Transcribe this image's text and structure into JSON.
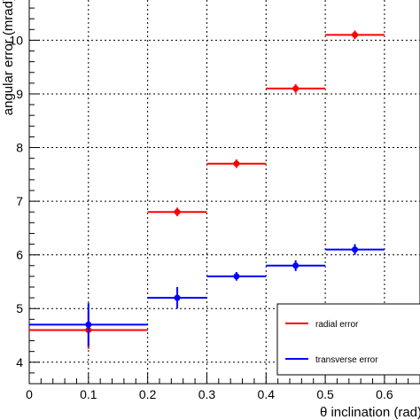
{
  "chart_data": {
    "type": "scatter",
    "xlabel": "θ inclination (rad)",
    "ylabel": "angular error (mrad)",
    "xlim": [
      0,
      0.66
    ],
    "ylim": [
      3.6,
      10.75
    ],
    "x_ticks": [
      "0",
      "0.1",
      "0.2",
      "0.3",
      "0.4",
      "0.5",
      "0.6"
    ],
    "y_ticks": [
      "4",
      "5",
      "6",
      "7",
      "8",
      "9",
      "10"
    ],
    "grid": true,
    "legend_position": "bottom-right",
    "series": [
      {
        "name": "radial error",
        "color": "#ff0000",
        "points": [
          {
            "x": 0.1,
            "y": 4.6,
            "x_err": 0.1,
            "y_err": 0.35
          },
          {
            "x": 0.25,
            "y": 6.8,
            "x_err": 0.05,
            "y_err": 0.08
          },
          {
            "x": 0.35,
            "y": 7.7,
            "x_err": 0.05,
            "y_err": 0.08
          },
          {
            "x": 0.45,
            "y": 9.1,
            "x_err": 0.05,
            "y_err": 0.08
          },
          {
            "x": 0.55,
            "y": 10.1,
            "x_err": 0.05,
            "y_err": 0.08
          }
        ]
      },
      {
        "name": "transverse error",
        "color": "#0000ff",
        "points": [
          {
            "x": 0.1,
            "y": 4.7,
            "x_err": 0.1,
            "y_err": 0.4
          },
          {
            "x": 0.25,
            "y": 5.2,
            "x_err": 0.05,
            "y_err": 0.2
          },
          {
            "x": 0.35,
            "y": 5.6,
            "x_err": 0.05,
            "y_err": 0.08
          },
          {
            "x": 0.45,
            "y": 5.8,
            "x_err": 0.05,
            "y_err": 0.1
          },
          {
            "x": 0.55,
            "y": 6.1,
            "x_err": 0.05,
            "y_err": 0.1
          }
        ]
      }
    ]
  }
}
